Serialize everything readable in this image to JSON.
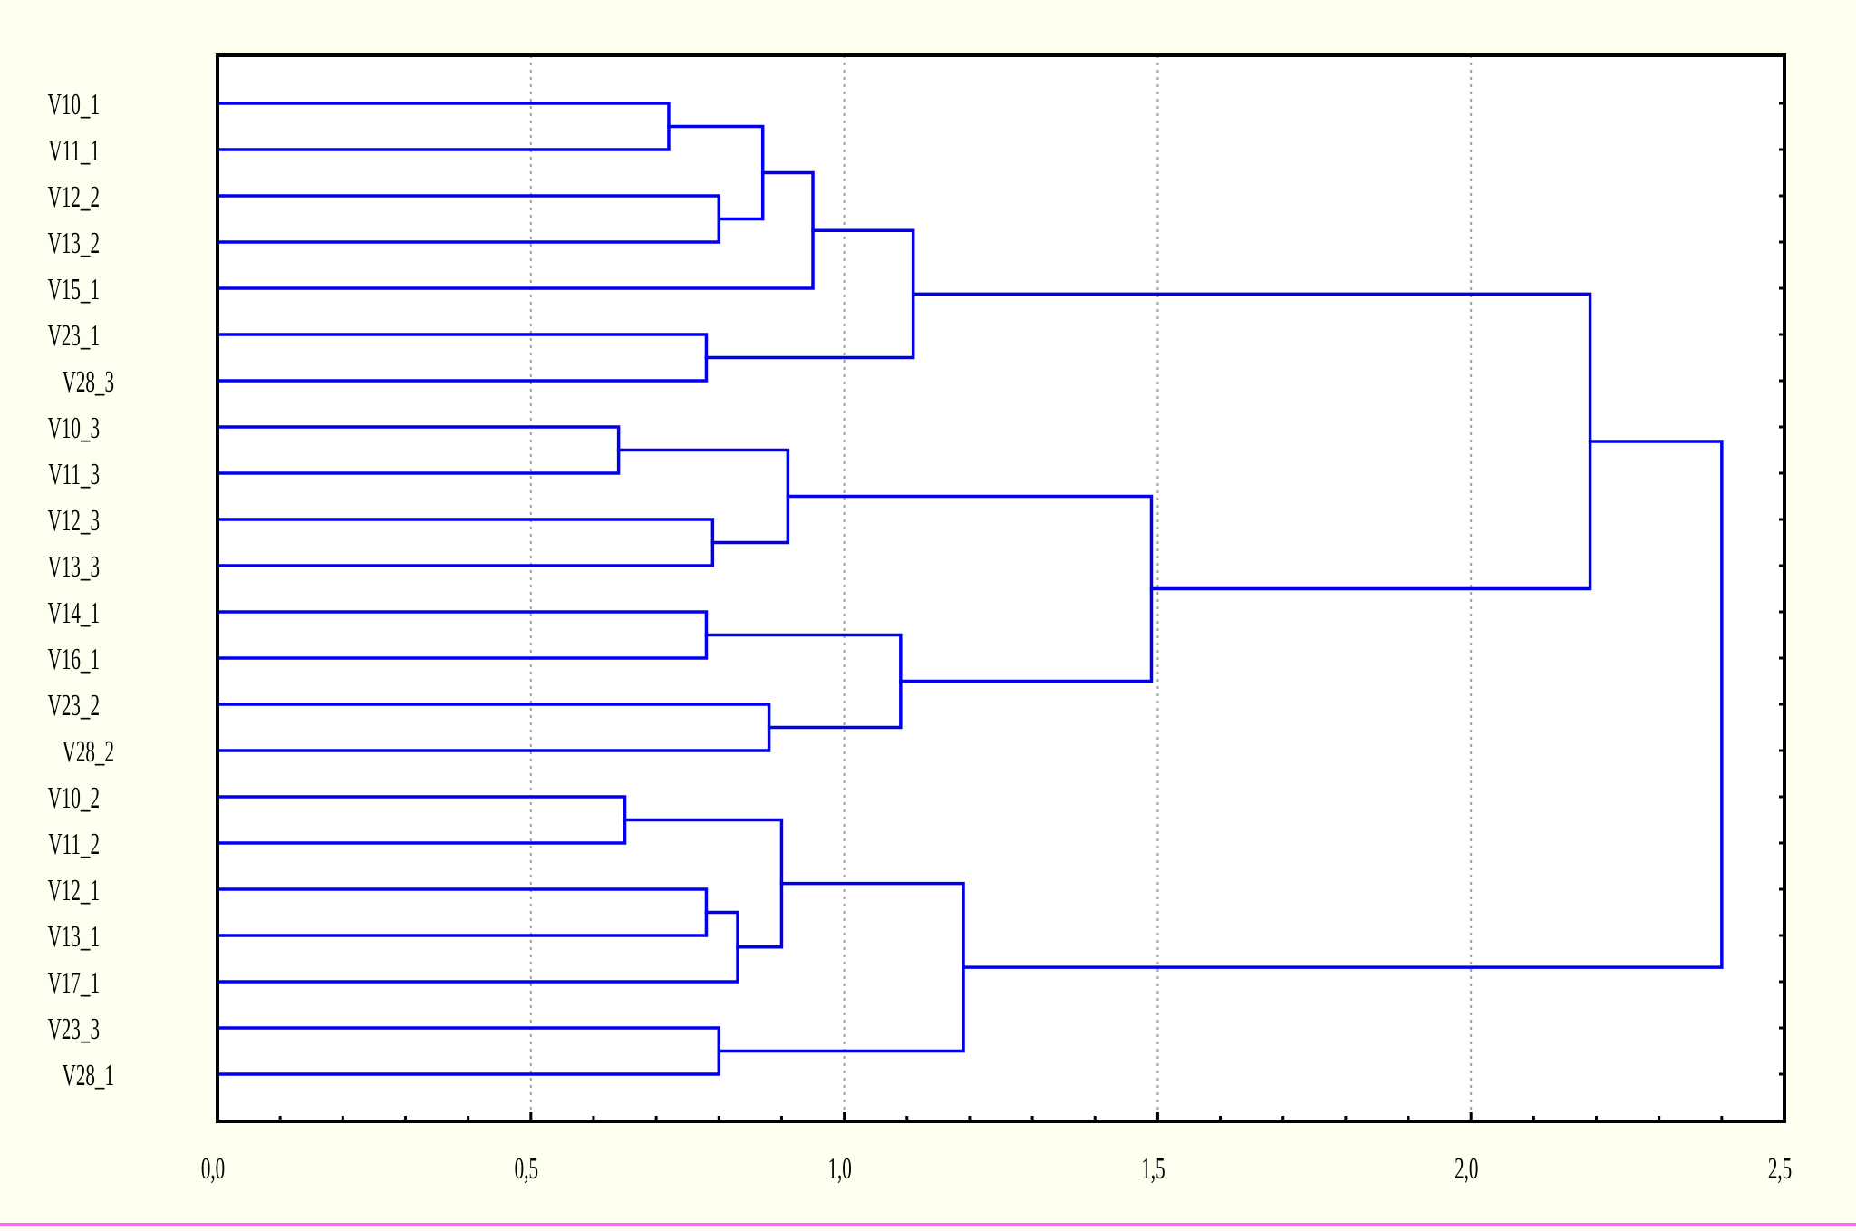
{
  "chart_data": {
    "type": "dendrogram",
    "orientation": "horizontal",
    "title": "",
    "xlabel": "",
    "ylabel": "",
    "xlim": [
      0,
      2.5
    ],
    "x_ticks": [
      0,
      0.5,
      1.0,
      1.5,
      2.0,
      2.5
    ],
    "x_tick_labels": [
      "0,0",
      "0,5",
      "1,0",
      "1,5",
      "2,0",
      "2,5"
    ],
    "grid": "vertical-dotted",
    "leaves": [
      "V10_1",
      "V11_1",
      "V12_2",
      "V13_2",
      "V15_1",
      "V23_1",
      "V28_3",
      "V10_3",
      "V11_3",
      "V12_3",
      "V13_3",
      "V14_1",
      "V16_1",
      "V23_2",
      "V28_2",
      "V10_2",
      "V11_2",
      "V12_1",
      "V13_1",
      "V17_1",
      "V23_3",
      "V28_1"
    ],
    "merges": [
      {
        "id": "m1",
        "left": "V10_1",
        "right": "V11_1",
        "height": 0.72
      },
      {
        "id": "m2",
        "left": "V12_2",
        "right": "V13_2",
        "height": 0.8
      },
      {
        "id": "m3",
        "left": "m1",
        "right": "m2",
        "height": 0.87
      },
      {
        "id": "m4",
        "left": "m3",
        "right": "V15_1",
        "height": 0.95
      },
      {
        "id": "m5",
        "left": "V23_1",
        "right": "V28_3",
        "height": 0.78
      },
      {
        "id": "m6",
        "left": "m4",
        "right": "m5",
        "height": 1.11
      },
      {
        "id": "m7",
        "left": "V10_3",
        "right": "V11_3",
        "height": 0.64
      },
      {
        "id": "m8",
        "left": "V12_3",
        "right": "V13_3",
        "height": 0.79
      },
      {
        "id": "m9",
        "left": "m7",
        "right": "m8",
        "height": 0.91
      },
      {
        "id": "m10",
        "left": "V14_1",
        "right": "V16_1",
        "height": 0.78
      },
      {
        "id": "m11",
        "left": "V23_2",
        "right": "V28_2",
        "height": 0.88
      },
      {
        "id": "m12",
        "left": "m10",
        "right": "m11",
        "height": 1.09
      },
      {
        "id": "m13",
        "left": "m9",
        "right": "m12",
        "height": 1.49
      },
      {
        "id": "m14",
        "left": "m6",
        "right": "m13",
        "height": 2.19
      },
      {
        "id": "m15",
        "left": "V10_2",
        "right": "V11_2",
        "height": 0.65
      },
      {
        "id": "m16",
        "left": "V12_1",
        "right": "V13_1",
        "height": 0.78
      },
      {
        "id": "m17",
        "left": "m16",
        "right": "V17_1",
        "height": 0.83
      },
      {
        "id": "m18",
        "left": "m15",
        "right": "m17",
        "height": 0.9
      },
      {
        "id": "m19",
        "left": "V23_3",
        "right": "V28_1",
        "height": 0.8
      },
      {
        "id": "m20",
        "left": "m18",
        "right": "m19",
        "height": 1.19
      },
      {
        "id": "m21",
        "left": "m14",
        "right": "m20",
        "height": 2.4
      }
    ]
  },
  "colors": {
    "background": "#FFFFF0",
    "line": "#0000EE",
    "axis": "#000000",
    "grid": "#A0A0A0",
    "bottom_border": "#FF66FF"
  }
}
